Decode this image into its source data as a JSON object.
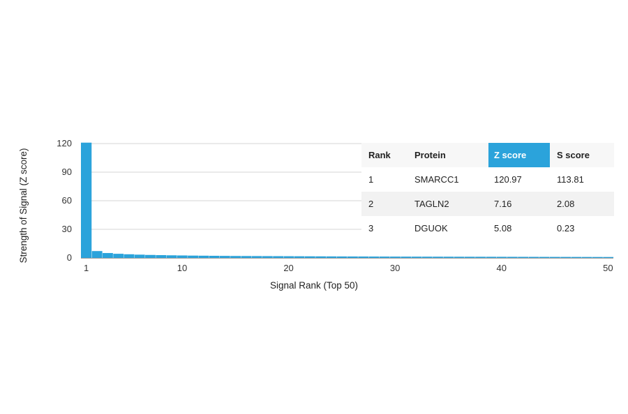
{
  "chart_data": {
    "type": "bar",
    "title": "",
    "xlabel": "Signal Rank (Top 50)",
    "ylabel": "Strength of Signal (Z score)",
    "ylim": [
      0,
      120
    ],
    "yticks": [
      0,
      30,
      60,
      90,
      120
    ],
    "xticks": [
      1,
      10,
      20,
      30,
      40,
      50
    ],
    "x": [
      1,
      2,
      3,
      4,
      5,
      6,
      7,
      8,
      9,
      10,
      11,
      12,
      13,
      14,
      15,
      16,
      17,
      18,
      19,
      20,
      21,
      22,
      23,
      24,
      25,
      26,
      27,
      28,
      29,
      30,
      31,
      32,
      33,
      34,
      35,
      36,
      37,
      38,
      39,
      40,
      41,
      42,
      43,
      44,
      45,
      46,
      47,
      48,
      49,
      50
    ],
    "values": [
      120.97,
      7.16,
      5.08,
      4.3,
      3.8,
      3.4,
      3.1,
      2.9,
      2.7,
      2.55,
      2.4,
      2.3,
      2.2,
      2.1,
      2.0,
      1.95,
      1.9,
      1.85,
      1.8,
      1.75,
      1.7,
      1.65,
      1.6,
      1.55,
      1.5,
      1.47,
      1.44,
      1.41,
      1.38,
      1.35,
      1.32,
      1.3,
      1.28,
      1.26,
      1.24,
      1.22,
      1.2,
      1.18,
      1.16,
      1.14,
      1.12,
      1.1,
      1.08,
      1.06,
      1.04,
      1.02,
      1.0,
      0.98,
      0.96,
      0.94
    ],
    "bar_color": "#2ba3db",
    "grid": true
  },
  "table": {
    "headers": [
      "Rank",
      "Protein",
      "Z score",
      "S score"
    ],
    "highlight_header": "Z score",
    "highlight_color": "#2ba3db",
    "rows": [
      [
        "1",
        "SMARCC1",
        "120.97",
        "113.81"
      ],
      [
        "2",
        "TAGLN2",
        "7.16",
        "2.08"
      ],
      [
        "3",
        "DGUOK",
        "5.08",
        "0.23"
      ]
    ]
  }
}
